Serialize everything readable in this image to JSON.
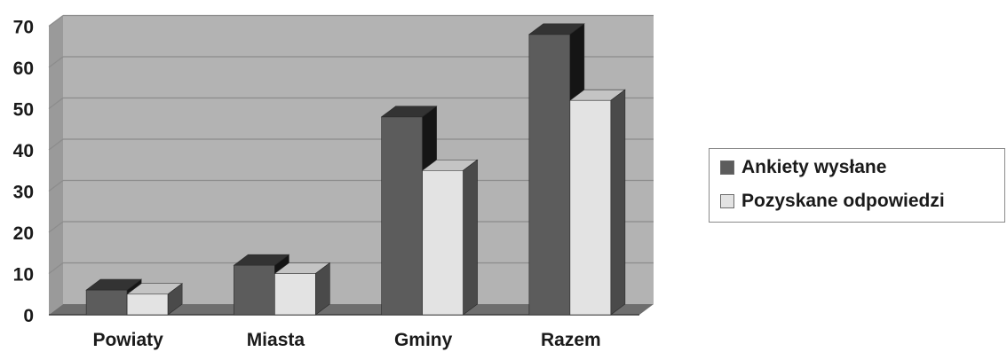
{
  "chart_data": {
    "type": "bar",
    "categories": [
      "Powiaty",
      "Miasta",
      "Gminy",
      "Razem"
    ],
    "series": [
      {
        "name": "Ankiety wysłane",
        "values": [
          6,
          12,
          48,
          68
        ],
        "color": "#5c5c5c",
        "top_color": "#333333",
        "side_color": "#151515"
      },
      {
        "name": "Pozyskane odpowiedzi",
        "values": [
          5,
          10,
          35,
          52
        ],
        "color": "#e3e3e3",
        "top_color": "#c4c4c4",
        "side_color": "#4a4a4a"
      }
    ],
    "ylim": [
      0,
      70
    ],
    "yticks": [
      "0",
      "10",
      "20",
      "30",
      "40",
      "50",
      "60",
      "70"
    ],
    "grid": true,
    "legend_position": "right",
    "background_color": "#b3b3b3",
    "grid_color": "#8c8c8c"
  }
}
